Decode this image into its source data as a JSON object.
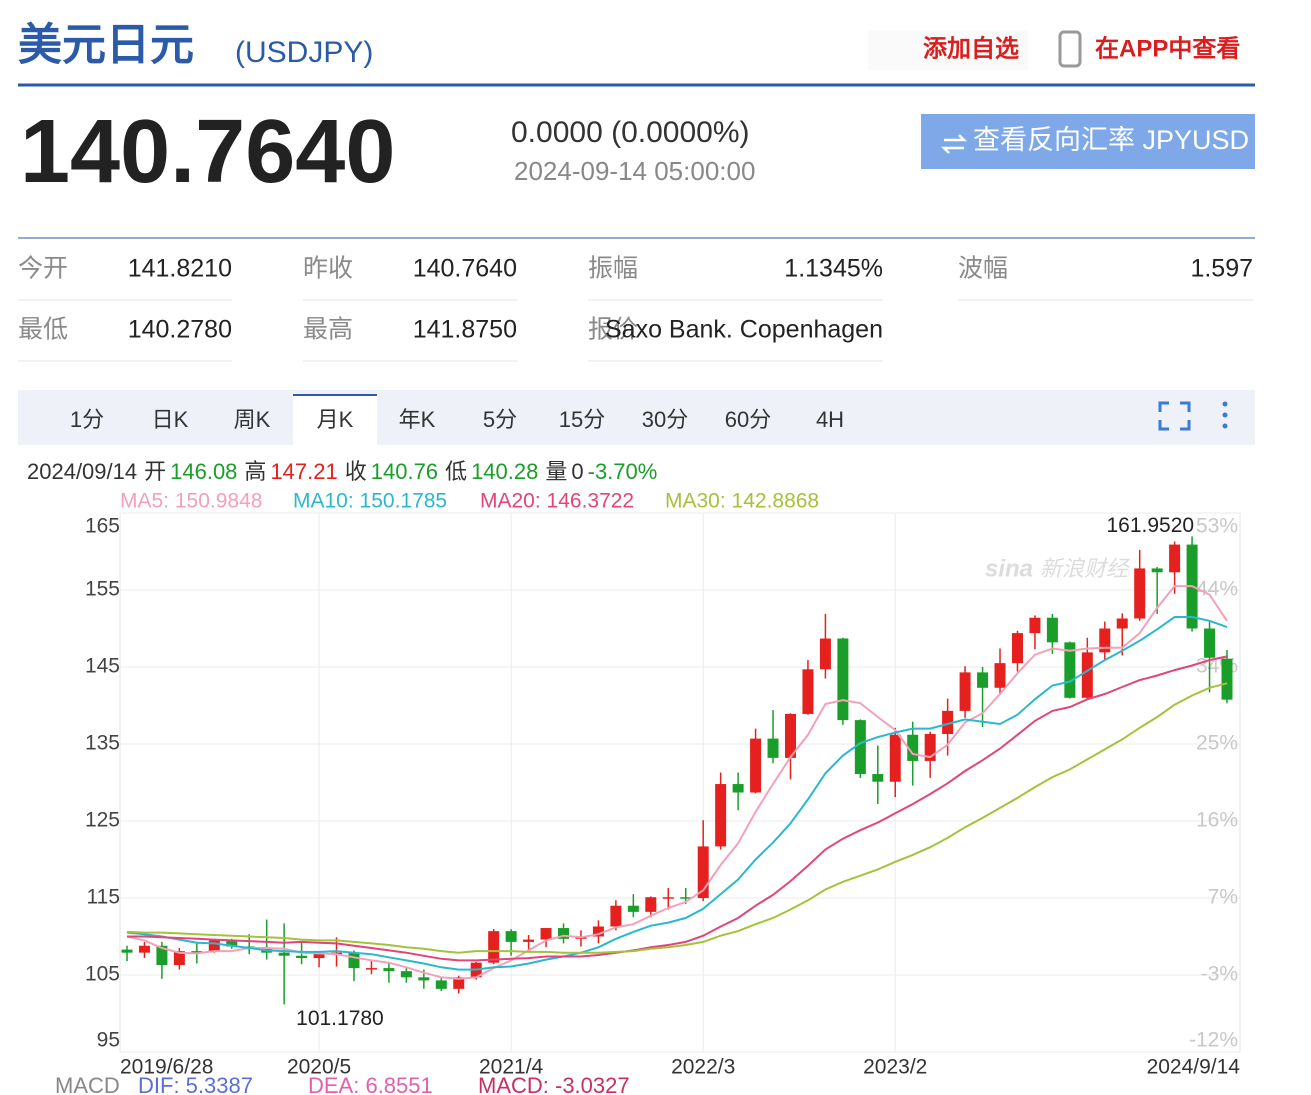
{
  "header": {
    "title": "美元日元",
    "code": "(USDJPY)",
    "actions": [
      "添加自选",
      "在APP中查看"
    ]
  },
  "quote": {
    "price": "140.7640",
    "change": "0.0000 (0.0000%)",
    "time": "2024-09-14 05:00:00",
    "button": "查看反向汇率 JPYUSD"
  },
  "stats": {
    "rows": [
      [
        "今开",
        "141.8210",
        "昨收",
        "140.7640",
        "振幅",
        "1.1345%",
        "波幅",
        "1.597"
      ],
      [
        "最低",
        "140.2780",
        "最高",
        "141.8750",
        "报价",
        "Saxo Bank. Copenhagen"
      ]
    ]
  },
  "tabs": {
    "items": [
      "1分",
      "日K",
      "周K",
      "月K",
      "年K",
      "5分",
      "15分",
      "30分",
      "60分",
      "4H"
    ],
    "active": 3
  },
  "info": {
    "date": "2024/09/14",
    "fields": [
      {
        "label": "开",
        "value": "146.08",
        "color": "#1a9e2a"
      },
      {
        "label": "高",
        "value": "147.21",
        "color": "#e4211f"
      },
      {
        "label": "收",
        "value": "140.76",
        "color": "#1a9e2a"
      },
      {
        "label": "低",
        "value": "140.28",
        "color": "#1a9e2a"
      },
      {
        "label": "量",
        "value": "0",
        "color": "#333333"
      },
      {
        "value": "-3.70%",
        "color": "#1a9e2a"
      }
    ]
  },
  "macd": [
    {
      "text": "MACD",
      "color": "#888888"
    },
    {
      "text": "DIF: 5.3387",
      "color": "#5a6fd6"
    },
    {
      "text": "DEA: 6.8551",
      "color": "#e060b0"
    },
    {
      "text": "MACD: -3.0327",
      "color": "#c83060"
    }
  ],
  "watermark": [
    "sina",
    "新浪财经"
  ],
  "chart_data": {
    "type": "candlestick",
    "categories": [
      "2019/6/28",
      null,
      null,
      null,
      null,
      null,
      null,
      null,
      null,
      null,
      null,
      "2020/5",
      null,
      null,
      null,
      null,
      null,
      null,
      null,
      null,
      null,
      null,
      "2021/4",
      null,
      null,
      null,
      null,
      null,
      null,
      null,
      null,
      null,
      null,
      "2022/3",
      null,
      null,
      null,
      null,
      null,
      null,
      null,
      null,
      null,
      null,
      "2023/2",
      null,
      null,
      null,
      null,
      null,
      null,
      null,
      null,
      null,
      null,
      null,
      null,
      null,
      null,
      null,
      null,
      null,
      null,
      "2024/9/14"
    ],
    "open": [
      108.3,
      107.9,
      108.8,
      106.3,
      108.1,
      108.0,
      109.5,
      108.7,
      108.4,
      107.9,
      107.5,
      107.2,
      107.8,
      107.9,
      105.9,
      105.9,
      105.5,
      104.7,
      104.3,
      103.2,
      104.7,
      106.6,
      110.7,
      109.3,
      109.6,
      111.1,
      109.7,
      110.0,
      111.3,
      114.0,
      113.2,
      115.1,
      115.1,
      115.0,
      121.7,
      129.8,
      128.7,
      135.7,
      133.2,
      138.9,
      144.7,
      148.7,
      138.1,
      131.1,
      130.1,
      136.2,
      132.8,
      136.3,
      139.3,
      144.3,
      142.3,
      145.5,
      149.4,
      151.4,
      148.2,
      141.0,
      146.9,
      150.0,
      151.3,
      157.8,
      157.3,
      160.9,
      150.0,
      146.08
    ],
    "high": [
      108.8,
      109.3,
      109.3,
      108.5,
      109.3,
      109.7,
      109.7,
      110.3,
      112.2,
      111.7,
      109.4,
      108.1,
      109.9,
      108.2,
      107.0,
      106.6,
      106.1,
      105.7,
      104.8,
      104.9,
      106.7,
      110.97,
      110.96,
      110.2,
      111.1,
      111.7,
      110.8,
      112.1,
      114.7,
      115.5,
      115.2,
      116.3,
      116.3,
      125.1,
      131.3,
      131.3,
      137.0,
      139.4,
      139.0,
      145.9,
      151.9,
      148.8,
      138.2,
      134.8,
      137.1,
      137.9,
      136.6,
      140.9,
      145.1,
      145.0,
      147.4,
      149.7,
      151.7,
      151.9,
      148.3,
      148.8,
      150.9,
      151.97,
      160.2,
      157.99,
      161.3,
      161.952,
      150.9,
      147.21
    ],
    "low": [
      106.8,
      107.2,
      104.5,
      105.7,
      106.5,
      107.9,
      108.4,
      107.7,
      107.0,
      101.178,
      106.4,
      106.0,
      106.1,
      104.2,
      105.1,
      104.0,
      104.0,
      103.2,
      102.9,
      102.6,
      104.4,
      106.4,
      107.5,
      108.3,
      108.6,
      109.1,
      108.7,
      109.1,
      110.8,
      112.5,
      112.5,
      113.5,
      114.2,
      114.6,
      121.3,
      126.4,
      128.6,
      132.5,
      130.4,
      138.8,
      143.5,
      137.5,
      130.6,
      127.2,
      128.1,
      129.6,
      130.6,
      133.5,
      138.4,
      137.2,
      141.5,
      144.4,
      147.3,
      146.7,
      140.9,
      140.8,
      145.9,
      146.5,
      151.0,
      151.9,
      154.5,
      149.6,
      141.7,
      140.28
    ],
    "close": [
      107.9,
      108.8,
      106.3,
      108.1,
      108.0,
      109.5,
      108.7,
      108.4,
      107.9,
      107.5,
      107.2,
      107.8,
      107.9,
      105.9,
      105.9,
      105.5,
      104.7,
      104.3,
      103.2,
      104.7,
      106.6,
      110.7,
      109.3,
      109.6,
      111.1,
      109.7,
      110.0,
      111.3,
      114.0,
      113.2,
      115.1,
      115.1,
      115.0,
      121.7,
      129.8,
      128.7,
      135.7,
      133.2,
      138.9,
      144.7,
      148.7,
      138.1,
      131.1,
      130.1,
      136.2,
      132.8,
      136.3,
      139.3,
      144.3,
      142.3,
      145.5,
      149.4,
      151.4,
      148.2,
      141.0,
      146.9,
      150.0,
      151.3,
      157.8,
      157.3,
      160.9,
      150.0,
      146.2,
      140.76
    ],
    "up_color": "#e4211f",
    "down_color": "#1a9e2a",
    "series": [
      {
        "name": "MA5: 150.9848",
        "color": "#f4a0b9",
        "values": [
          110.0,
          109.5,
          108.5,
          107.9,
          107.8,
          108.1,
          108.1,
          108.5,
          108.5,
          108.4,
          107.9,
          107.8,
          107.7,
          107.3,
          106.9,
          106.6,
          106.0,
          105.3,
          104.7,
          104.5,
          104.7,
          105.9,
          106.9,
          108.2,
          109.5,
          110.1,
          109.9,
          110.3,
          111.2,
          111.6,
          112.7,
          113.7,
          114.5,
          116.0,
          119.3,
          122.1,
          126.2,
          129.8,
          133.3,
          136.2,
          140.2,
          140.7,
          140.3,
          138.5,
          136.8,
          133.7,
          133.3,
          134.9,
          137.8,
          139.0,
          141.5,
          144.2,
          146.6,
          147.4,
          147.1,
          147.4,
          147.5,
          147.5,
          149.4,
          152.7,
          155.5,
          155.5,
          154.4,
          150.9848
        ]
      },
      {
        "name": "MA10: 150.1785",
        "color": "#2ab8d0",
        "values": [
          110.5,
          110.3,
          110.0,
          109.6,
          109.2,
          109.1,
          108.8,
          108.5,
          108.2,
          108.1,
          108.0,
          108.0,
          108.1,
          107.9,
          107.7,
          107.3,
          106.9,
          106.5,
          106.0,
          105.7,
          105.7,
          106.0,
          106.1,
          106.5,
          107.0,
          107.4,
          107.9,
          108.6,
          109.7,
          110.6,
          111.4,
          111.8,
          112.4,
          113.6,
          115.5,
          117.4,
          120.0,
          122.2,
          124.7,
          127.8,
          131.2,
          133.5,
          135.1,
          135.9,
          136.5,
          137.0,
          137.0,
          137.6,
          138.2,
          137.9,
          137.6,
          138.8,
          140.8,
          142.6,
          143.1,
          144.5,
          145.9,
          147.1,
          148.4,
          149.9,
          151.5,
          151.5,
          151.0,
          150.1785
        ]
      },
      {
        "name": "MA20: 146.3722",
        "color": "#e0457b",
        "values": [
          110.0,
          110.0,
          109.9,
          109.8,
          109.7,
          109.6,
          109.5,
          109.4,
          109.3,
          109.2,
          109.3,
          109.2,
          109.1,
          108.8,
          108.5,
          108.2,
          107.9,
          107.5,
          107.1,
          106.9,
          106.9,
          107.0,
          107.1,
          107.2,
          107.4,
          107.4,
          107.4,
          107.6,
          107.9,
          108.2,
          108.6,
          108.9,
          109.3,
          110.1,
          111.3,
          112.4,
          114.0,
          115.4,
          117.2,
          119.2,
          121.3,
          122.7,
          123.8,
          124.8,
          126.0,
          127.2,
          128.5,
          129.9,
          131.5,
          132.9,
          134.4,
          136.2,
          138.0,
          139.3,
          139.8,
          140.8,
          141.5,
          142.4,
          143.3,
          143.9,
          144.6,
          145.2,
          145.9,
          146.3722
        ]
      },
      {
        "name": "MA30: 142.8868",
        "color": "#a4c23a",
        "values": [
          110.6,
          110.5,
          110.5,
          110.4,
          110.3,
          110.2,
          110.1,
          110.0,
          109.9,
          109.8,
          109.6,
          109.5,
          109.5,
          109.3,
          109.1,
          108.9,
          108.6,
          108.4,
          108.1,
          107.9,
          108.1,
          108.1,
          108.1,
          108.0,
          108.0,
          107.9,
          107.9,
          107.9,
          108.0,
          108.1,
          108.4,
          108.6,
          108.9,
          109.3,
          110.1,
          110.7,
          111.6,
          112.4,
          113.5,
          114.7,
          116.1,
          117.1,
          117.9,
          118.7,
          119.7,
          120.6,
          121.6,
          122.8,
          124.2,
          125.4,
          126.7,
          128.0,
          129.4,
          130.7,
          131.7,
          133.0,
          134.3,
          135.6,
          137.1,
          138.5,
          140.1,
          141.3,
          142.3,
          142.8868
        ]
      }
    ],
    "ylim": [
      95,
      165
    ],
    "yticks": [
      95,
      105,
      115,
      125,
      135,
      145,
      155,
      165
    ],
    "y2lim": [
      -11.9,
      53.0
    ],
    "y2ticks": [
      {
        "value": -11.9,
        "label": "-12%"
      },
      {
        "value": -2.62,
        "label": "-3%"
      },
      {
        "value": 6.65,
        "label": "7%"
      },
      {
        "value": 15.92,
        "label": "16%"
      },
      {
        "value": 25.2,
        "label": "25%"
      },
      {
        "value": 34.47,
        "label": "34%"
      },
      {
        "value": 43.74,
        "label": "44%"
      },
      {
        "value": 53.0,
        "label": "53%"
      }
    ],
    "grid": true,
    "high_label": "161.9520",
    "low_label": "101.1780"
  }
}
